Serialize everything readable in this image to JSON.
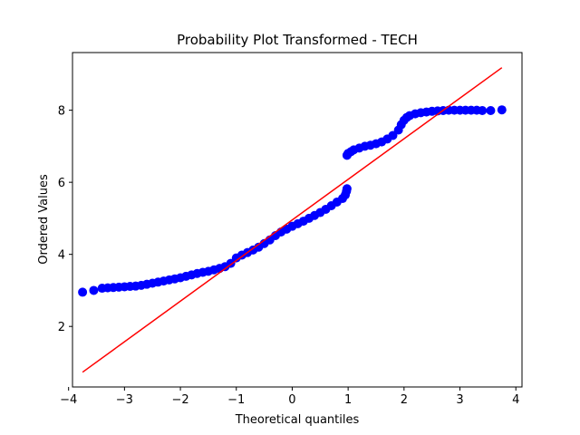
{
  "chart_data": {
    "type": "scatter",
    "title": "Probability Plot Transformed - TECH",
    "xlabel": "Theoretical quantiles",
    "ylabel": "Ordered Values",
    "xlim": [
      -3.93,
      4.11
    ],
    "ylim": [
      0.32,
      9.6
    ],
    "x_ticks": [
      -4,
      -3,
      -2,
      -1,
      0,
      1,
      2,
      3,
      4
    ],
    "x_tick_labels": [
      "−4",
      "−3",
      "−2",
      "−1",
      "0",
      "1",
      "2",
      "3",
      "4"
    ],
    "y_ticks": [
      2,
      4,
      6,
      8
    ],
    "y_tick_labels": [
      "2",
      "4",
      "6",
      "8"
    ],
    "grid": false,
    "point_color": "#0000ff",
    "line_color": "#ff0000",
    "fit_line": {
      "x": [
        -3.75,
        3.75
      ],
      "y": [
        0.73,
        9.18
      ]
    },
    "points": [
      [
        -3.75,
        2.95
      ],
      [
        -3.55,
        3.0
      ],
      [
        -3.4,
        3.06
      ],
      [
        -3.3,
        3.07
      ],
      [
        -3.2,
        3.08
      ],
      [
        -3.1,
        3.09
      ],
      [
        -3.0,
        3.1
      ],
      [
        -2.9,
        3.11
      ],
      [
        -2.8,
        3.12
      ],
      [
        -2.7,
        3.14
      ],
      [
        -2.6,
        3.17
      ],
      [
        -2.5,
        3.2
      ],
      [
        -2.4,
        3.23
      ],
      [
        -2.3,
        3.26
      ],
      [
        -2.2,
        3.29
      ],
      [
        -2.1,
        3.32
      ],
      [
        -2.0,
        3.35
      ],
      [
        -1.9,
        3.39
      ],
      [
        -1.8,
        3.43
      ],
      [
        -1.7,
        3.47
      ],
      [
        -1.6,
        3.5
      ],
      [
        -1.5,
        3.53
      ],
      [
        -1.4,
        3.57
      ],
      [
        -1.3,
        3.61
      ],
      [
        -1.2,
        3.66
      ],
      [
        -1.1,
        3.75
      ],
      [
        -1.0,
        3.9
      ],
      [
        -0.9,
        3.98
      ],
      [
        -0.8,
        4.05
      ],
      [
        -0.7,
        4.12
      ],
      [
        -0.6,
        4.2
      ],
      [
        -0.5,
        4.3
      ],
      [
        -0.4,
        4.4
      ],
      [
        -0.3,
        4.52
      ],
      [
        -0.2,
        4.62
      ],
      [
        -0.1,
        4.7
      ],
      [
        0.0,
        4.78
      ],
      [
        0.1,
        4.85
      ],
      [
        0.2,
        4.92
      ],
      [
        0.3,
        5.0
      ],
      [
        0.4,
        5.08
      ],
      [
        0.5,
        5.16
      ],
      [
        0.6,
        5.25
      ],
      [
        0.7,
        5.35
      ],
      [
        0.8,
        5.45
      ],
      [
        0.9,
        5.55
      ],
      [
        0.95,
        5.65
      ],
      [
        0.97,
        5.75
      ],
      [
        0.98,
        5.82
      ],
      [
        0.98,
        6.75
      ],
      [
        1.0,
        6.8
      ],
      [
        1.05,
        6.85
      ],
      [
        1.1,
        6.9
      ],
      [
        1.2,
        6.95
      ],
      [
        1.3,
        7.0
      ],
      [
        1.4,
        7.03
      ],
      [
        1.5,
        7.07
      ],
      [
        1.6,
        7.12
      ],
      [
        1.7,
        7.2
      ],
      [
        1.8,
        7.3
      ],
      [
        1.9,
        7.45
      ],
      [
        1.95,
        7.6
      ],
      [
        2.0,
        7.72
      ],
      [
        2.05,
        7.8
      ],
      [
        2.1,
        7.85
      ],
      [
        2.2,
        7.9
      ],
      [
        2.3,
        7.93
      ],
      [
        2.4,
        7.95
      ],
      [
        2.5,
        7.97
      ],
      [
        2.6,
        7.98
      ],
      [
        2.7,
        7.99
      ],
      [
        2.8,
        8.0
      ],
      [
        2.9,
        8.0
      ],
      [
        3.0,
        8.0
      ],
      [
        3.1,
        8.0
      ],
      [
        3.2,
        8.0
      ],
      [
        3.3,
        8.0
      ],
      [
        3.4,
        7.99
      ],
      [
        3.55,
        7.99
      ],
      [
        3.75,
        8.01
      ]
    ]
  }
}
